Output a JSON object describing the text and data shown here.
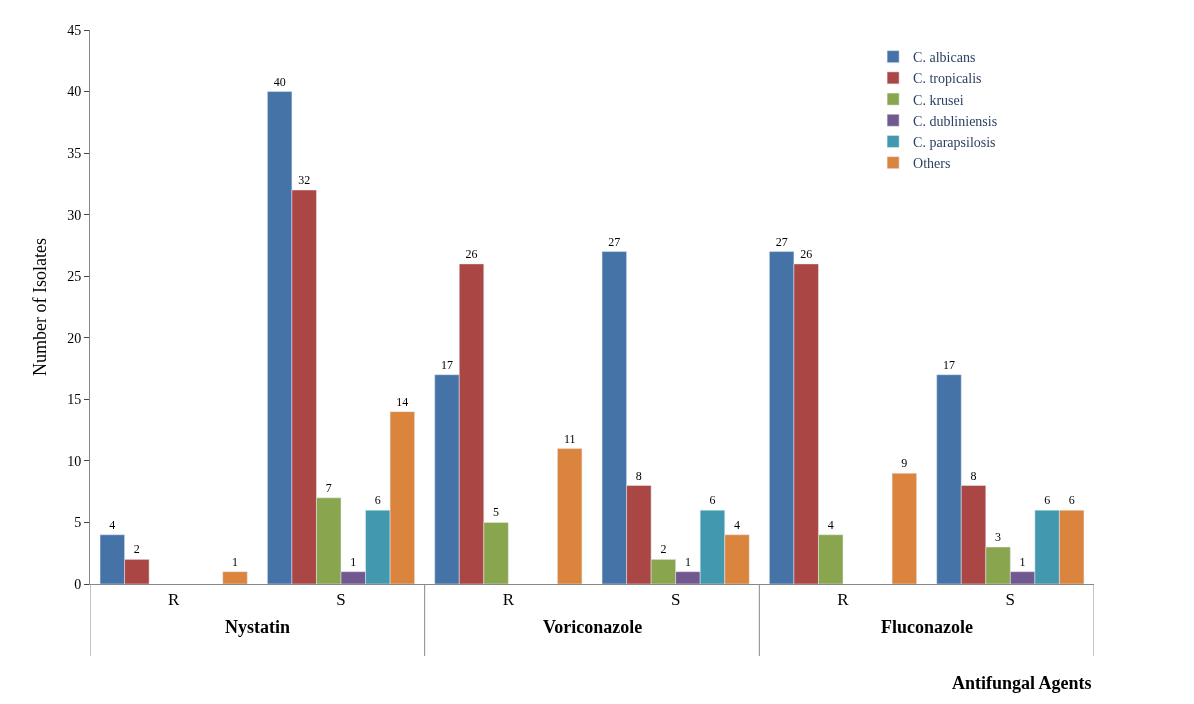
{
  "chart_data": {
    "type": "bar",
    "ylabel": "Number of Isolates",
    "xlabel": "Antifungal Agents",
    "categories": [
      "R",
      "S",
      "R",
      "S",
      "R",
      "S"
    ],
    "annotations": [
      "Nystatin",
      "Voriconazole",
      "Fluconazole"
    ],
    "ylim": [
      0,
      45
    ],
    "yticks": [
      0,
      5,
      10,
      15,
      20,
      25,
      30,
      35,
      40,
      45
    ],
    "legend": "top right",
    "series": [
      {
        "name": "C. albicans",
        "color": "#4572a7",
        "values": [
          4,
          40,
          17,
          27,
          27,
          17
        ],
        "value_labels": [
          "4",
          "40",
          "17",
          "27",
          "27",
          "17"
        ]
      },
      {
        "name": "C. tropicalis",
        "color": "#aa4643",
        "values": [
          2,
          32,
          26,
          8,
          26,
          8
        ],
        "value_labels": [
          "2",
          "32",
          "26",
          "8",
          "26",
          "8"
        ]
      },
      {
        "name": "C. krusei",
        "color": "#89a54e",
        "values": [
          null,
          7,
          5,
          2,
          4,
          3
        ],
        "value_labels": [
          null,
          "7",
          "5",
          "2",
          "4",
          "3"
        ]
      },
      {
        "name": "C. dubliniensis",
        "color": "#71588f",
        "values": [
          null,
          1,
          null,
          1,
          null,
          1
        ],
        "value_labels": [
          null,
          "1",
          null,
          "1",
          null,
          "1"
        ]
      },
      {
        "name": "C. parapsilosis",
        "color": "#4198af",
        "values": [
          null,
          6,
          null,
          6,
          null,
          6
        ],
        "value_labels": [
          null,
          "6",
          null,
          "6",
          null,
          "6"
        ]
      },
      {
        "name": "Others",
        "color": "#db843d",
        "values": [
          1,
          14,
          11,
          4,
          9,
          6
        ],
        "value_labels": [
          "1",
          "14",
          "11",
          "4",
          "9",
          "6"
        ]
      }
    ]
  }
}
